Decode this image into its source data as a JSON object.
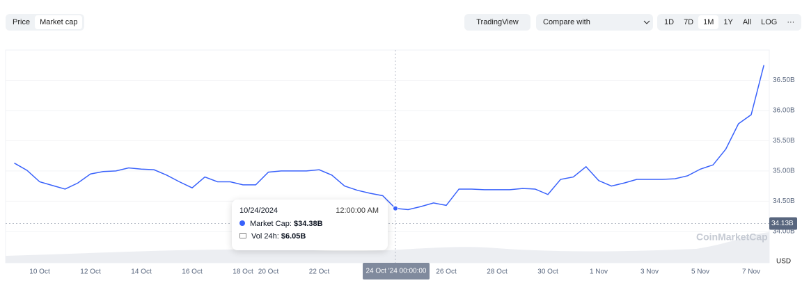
{
  "toolbar": {
    "toggle": [
      "Price",
      "Market cap"
    ],
    "tradingview": "TradingView",
    "compare": "Compare with",
    "ranges": [
      "1D",
      "7D",
      "1M",
      "1Y",
      "All",
      "LOG",
      "···"
    ]
  },
  "chart_data": {
    "type": "line",
    "categories": [
      null,
      null,
      "10 Oct",
      null,
      null,
      null,
      "12 Oct",
      null,
      null,
      null,
      "14 Oct",
      null,
      null,
      null,
      "16 Oct",
      null,
      null,
      null,
      "18 Oct",
      null,
      "20 Oct",
      null,
      null,
      null,
      "22 Oct",
      null,
      null,
      null,
      null,
      null,
      "24 Oct '24 00:00:00",
      null,
      null,
      null,
      "26 Oct",
      null,
      null,
      null,
      "28 Oct",
      null,
      null,
      null,
      "30 Oct",
      null,
      null,
      null,
      "1 Nov",
      null,
      null,
      null,
      "3 Nov",
      null,
      null,
      null,
      "5 Nov",
      null,
      null,
      null,
      "7 Nov",
      null
    ],
    "values": [
      35.13,
      35.01,
      34.82,
      34.76,
      34.7,
      34.8,
      34.95,
      34.99,
      35.0,
      35.05,
      35.03,
      35.02,
      34.93,
      34.82,
      34.72,
      34.9,
      34.82,
      34.82,
      34.77,
      34.77,
      34.98,
      35.0,
      35.0,
      35.0,
      35.02,
      34.93,
      34.75,
      34.68,
      34.63,
      34.59,
      34.38,
      34.36,
      34.41,
      34.47,
      34.43,
      34.7,
      34.7,
      34.69,
      34.69,
      34.69,
      34.71,
      34.7,
      34.61,
      34.86,
      34.9,
      35.07,
      34.84,
      34.75,
      34.8,
      34.86,
      34.86,
      34.86,
      34.87,
      34.92,
      35.03,
      35.1,
      35.36,
      35.78,
      35.93,
      36.75
    ],
    "color": "#3861fb",
    "ylim": [
      33.48,
      37.0
    ],
    "yticks": [
      {
        "value": 34,
        "label": "34.00B"
      },
      {
        "value": 34.5,
        "label": "34.50B"
      },
      {
        "value": 35,
        "label": "35.00B"
      },
      {
        "value": 35.5,
        "label": "35.50B"
      },
      {
        "value": 36,
        "label": "36.00B"
      },
      {
        "value": 36.5,
        "label": "36.50B"
      }
    ],
    "grid": true,
    "price_marker": {
      "value": 34.13,
      "label": "34.13B"
    },
    "unit": "USD",
    "watermark": "CoinMarketCap",
    "tooltip": {
      "date": "10/24/2024",
      "time": "12:00:00 AM",
      "cap_label": "Market Cap: ",
      "cap": "$34.38B",
      "vol_label": "Vol 24h: ",
      "vol": "$6.05B"
    }
  }
}
